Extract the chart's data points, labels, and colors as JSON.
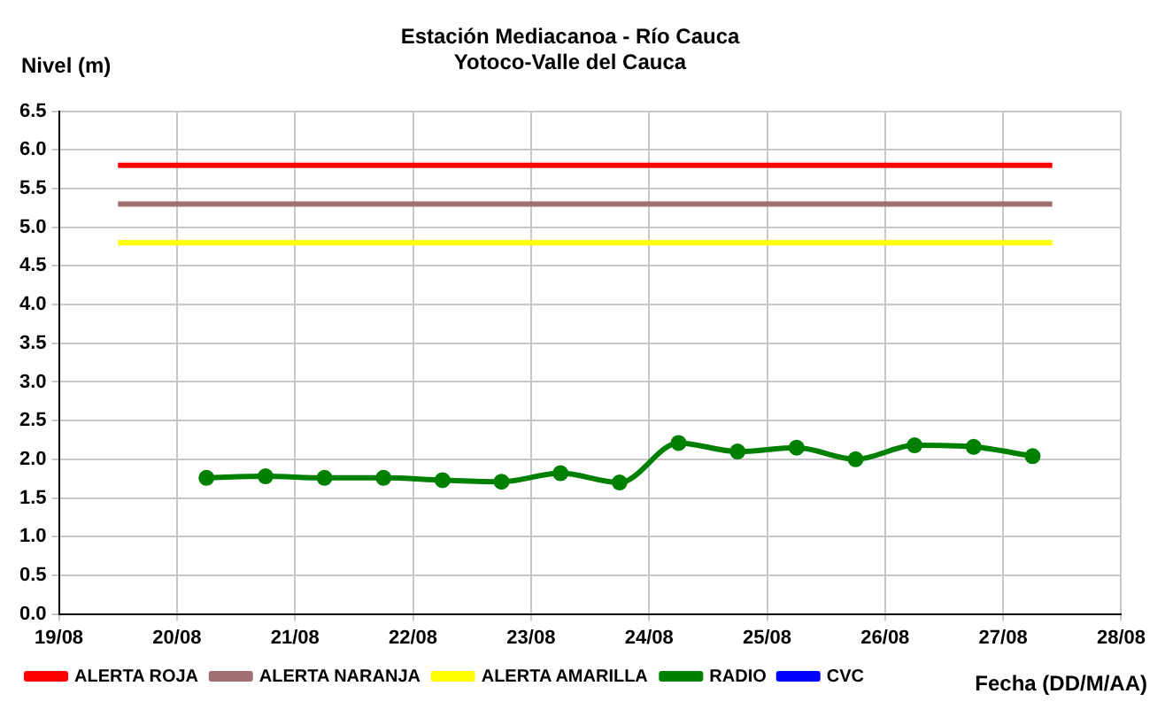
{
  "chart_data": {
    "type": "line",
    "title": [
      "Estación Mediacanoa - Río Cauca",
      "Yotoco-Valle del Cauca"
    ],
    "ylabel": "Nivel (m)",
    "xlabel": "Fecha (DD/M/AA)",
    "series": [
      {
        "name": "ALERTA ROJA",
        "color": "#ff0000",
        "marker": "none",
        "x": [
          "--08-19T12:00",
          "--08-27T10:00"
        ],
        "values": [
          5.8,
          5.8
        ]
      },
      {
        "name": "ALERTA NARANJA",
        "color": "#a07070",
        "marker": "none",
        "x": [
          "--08-19T12:00",
          "--08-27T10:00"
        ],
        "values": [
          5.3,
          5.3
        ]
      },
      {
        "name": "ALERTA AMARILLA",
        "color": "#ffff00",
        "marker": "none",
        "x": [
          "--08-19T12:00",
          "--08-27T10:00"
        ],
        "values": [
          4.8,
          4.8
        ]
      },
      {
        "name": "RADIO",
        "color": "#008000",
        "marker": "circle",
        "x": [
          "--08-20T06:00",
          "--08-20T18:00",
          "--08-21T06:00",
          "--08-21T18:00",
          "--08-22T06:00",
          "--08-22T18:00",
          "--08-23T06:00",
          "--08-23T18:00",
          "--08-24T06:00",
          "--08-24T18:00",
          "--08-25T06:00",
          "--08-25T18:00",
          "--08-26T06:00",
          "--08-26T18:00",
          "--08-27T06:00"
        ],
        "values": [
          1.76,
          1.78,
          1.76,
          1.76,
          1.73,
          1.71,
          1.82,
          1.7,
          2.21,
          2.1,
          2.15,
          2.0,
          2.18,
          2.16,
          2.04
        ]
      },
      {
        "name": "CVC",
        "color": "#0000ff",
        "marker": "circle"
      }
    ],
    "xlim": [
      "--08-19",
      "--08-28"
    ],
    "xticks": [
      {
        "value": "--08-19",
        "label": "19/08"
      },
      {
        "value": "--08-20",
        "label": "20/08"
      },
      {
        "value": "--08-21",
        "label": "21/08"
      },
      {
        "value": "--08-22",
        "label": "22/08"
      },
      {
        "value": "--08-23",
        "label": "23/08"
      },
      {
        "value": "--08-24",
        "label": "24/08"
      },
      {
        "value": "--08-25",
        "label": "25/08"
      },
      {
        "value": "--08-26",
        "label": "26/08"
      },
      {
        "value": "--08-27",
        "label": "27/08"
      },
      {
        "value": "--08-28",
        "label": "28/08"
      }
    ],
    "ylim": [
      0,
      6.5
    ],
    "yticks": [
      {
        "value": 0,
        "label": "0.0"
      },
      {
        "value": 0.5,
        "label": "0.5"
      },
      {
        "value": 1,
        "label": "1.0"
      },
      {
        "value": 1.5,
        "label": "1.5"
      },
      {
        "value": 2,
        "label": "2.0"
      },
      {
        "value": 2.5,
        "label": "2.5"
      },
      {
        "value": 3,
        "label": "3.0"
      },
      {
        "value": 3.5,
        "label": "3.5"
      },
      {
        "value": 4,
        "label": "4.0"
      },
      {
        "value": 4.5,
        "label": "4.5"
      },
      {
        "value": 5,
        "label": "5.0"
      },
      {
        "value": 5.5,
        "label": "5.5"
      },
      {
        "value": 6,
        "label": "6.0"
      },
      {
        "value": 6.5,
        "label": "6.5"
      }
    ],
    "grid": true,
    "legend": "bottom",
    "line_style": "solid"
  }
}
